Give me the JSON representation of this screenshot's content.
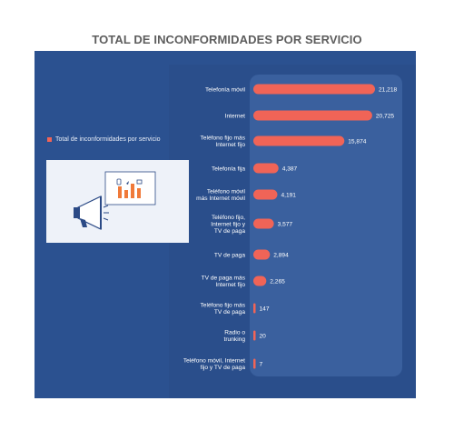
{
  "page": {
    "title": "TOTAL DE INCONFORMIDADES POR SERVICIO"
  },
  "legend": {
    "label": "Total de inconformidades por servicio",
    "color": "#f06457"
  },
  "illustration": {
    "icon": "megaphone-chart-icon"
  },
  "chart_data": {
    "type": "bar",
    "orientation": "horizontal",
    "title": "TOTAL DE INCONFORMIDADES POR SERVICIO",
    "bar_color": "#f06457",
    "series": [
      {
        "name": "Total de inconformidades por servicio",
        "values": [
          21218,
          20725,
          15874,
          4387,
          4191,
          3577,
          2894,
          2265,
          147,
          20,
          7
        ],
        "value_labels": [
          "21,218",
          "20,725",
          "15,874",
          "4,387",
          "4,191",
          "3,577",
          "2,894",
          "2,265",
          "147",
          "20",
          "7"
        ]
      }
    ],
    "categories": [
      [
        "Telefonía móvil"
      ],
      [
        "Internet"
      ],
      [
        "Teléfono fijo más",
        "Internet fijo"
      ],
      [
        "Telefonía fija"
      ],
      [
        "Teléfono móvil",
        "más Internet móvil"
      ],
      [
        "Teléfono fijo,",
        "Internet fijo y",
        "TV de paga"
      ],
      [
        "TV de paga"
      ],
      [
        "TV de paga más",
        "Internet fijo"
      ],
      [
        "Teléfono fijo más",
        "TV de paga"
      ],
      [
        "Radio o",
        "trunking"
      ],
      [
        "Teléfono móvil, Internet",
        "fijo y TV de paga"
      ]
    ],
    "xlim": [
      0,
      21218
    ],
    "grid": false,
    "legend_position": "left"
  }
}
